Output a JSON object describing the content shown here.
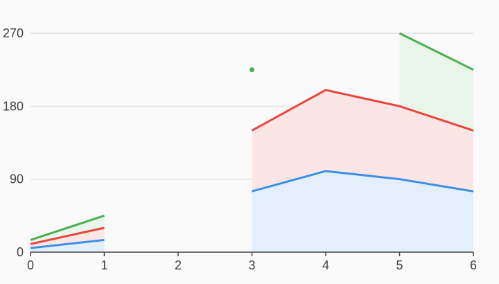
{
  "chart_data": {
    "type": "area",
    "stacked": true,
    "x": [
      0,
      1,
      2,
      3,
      4,
      5,
      6
    ],
    "xlim": [
      0,
      6
    ],
    "ylim": [
      0,
      270
    ],
    "x_ticks": [
      "0",
      "1",
      "2",
      "3",
      "4",
      "5",
      "6"
    ],
    "y_ticks": [
      "0",
      "90",
      "180",
      "270"
    ],
    "grid": true,
    "title": "",
    "xlabel": "",
    "ylabel": "",
    "series": [
      {
        "color": "#3b8fe4",
        "fill": "#e3f0fb",
        "values": [
          5,
          15,
          null,
          75,
          100,
          90,
          75
        ]
      },
      {
        "color": "#e8453c",
        "fill": "#fce6e5",
        "values": [
          5,
          15,
          null,
          75,
          100,
          90,
          75
        ]
      },
      {
        "color": "#4caf50",
        "fill": "#e8f5e9",
        "values": [
          5,
          15,
          null,
          75,
          null,
          90,
          75
        ]
      }
    ]
  }
}
